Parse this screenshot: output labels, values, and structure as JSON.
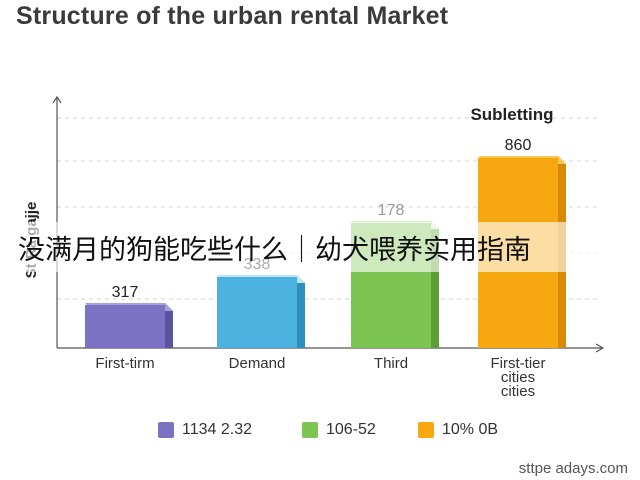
{
  "chart_data": {
    "type": "bar",
    "title": "Structure of the urban rental Market",
    "ylabel": "St Ra gajje",
    "categories": [
      "First-tirm",
      "Demand",
      "Third",
      "First-tier cities cities"
    ],
    "category_lines": [
      [
        "First-tirm"
      ],
      [
        "Demand"
      ],
      [
        "Third"
      ],
      [
        "First-tier",
        "cities",
        "cities"
      ]
    ],
    "values": [
      317,
      338,
      178,
      860
    ],
    "value_labels": [
      "317",
      "338",
      "178",
      "860"
    ],
    "bar_colors": [
      "#7b72c4",
      "#4bb2e0",
      "#7cc552",
      "#f7a70f"
    ],
    "bar_top_colors": [
      "#a59fdc",
      "#bfe6f6",
      "#d7efc5",
      "#fbc650"
    ],
    "bar_side_colors": [
      "#5c539e",
      "#2f8fbb",
      "#5c9e38",
      "#d68a06"
    ],
    "annotation": "Subletting",
    "grid": true,
    "legend_position": "bottom",
    "legend": [
      {
        "label": "1134 2.32",
        "color": "#7b72c4"
      },
      {
        "label": "106-52",
        "color": "#7cc552"
      },
      {
        "label": "10% 0B",
        "color": "#f7a70f"
      }
    ]
  },
  "overlay_text": "没满月的狗能吃些什么｜幼犬喂养实用指南",
  "watermark": "sttpe adays.com"
}
